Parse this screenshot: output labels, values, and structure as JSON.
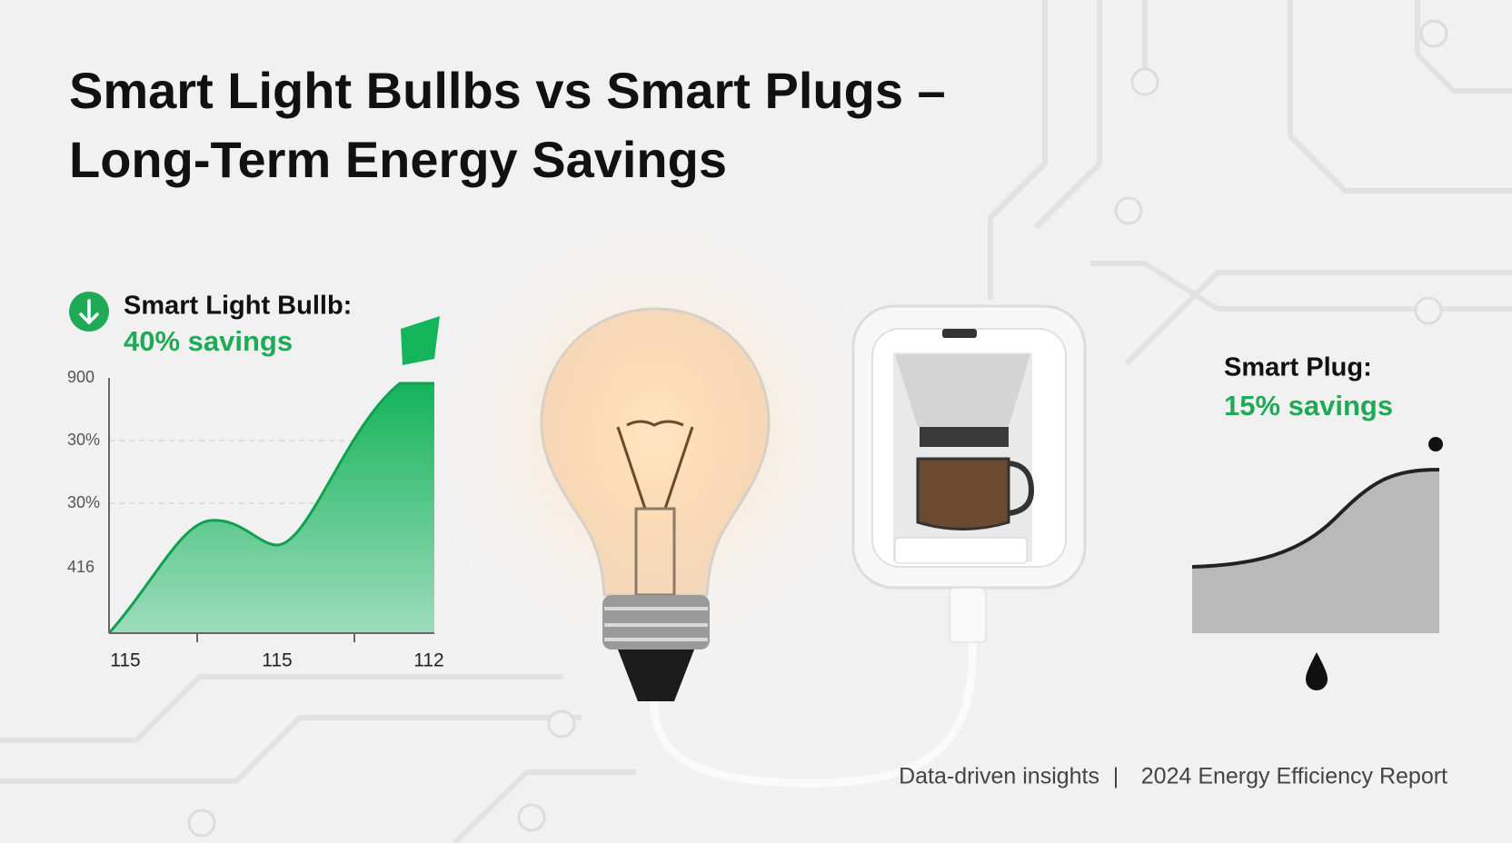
{
  "title": {
    "line1": "Smart Light Bullbs vs Smart Plugs –",
    "line2": "Long-Term Energy Savings"
  },
  "bulb_panel": {
    "label": "Smart Light Bullb:",
    "savings": "40% savings",
    "y_axis_labels": [
      "900",
      "30%",
      "30%",
      "416"
    ],
    "x_axis_labels": [
      "115",
      "115",
      "112"
    ]
  },
  "plug_panel": {
    "label": "Smart Plug:",
    "savings": "15% savings"
  },
  "footer": {
    "left": "Data-driven insights",
    "separator": "|",
    "right": "2024 Energy Efficiency Report"
  }
}
